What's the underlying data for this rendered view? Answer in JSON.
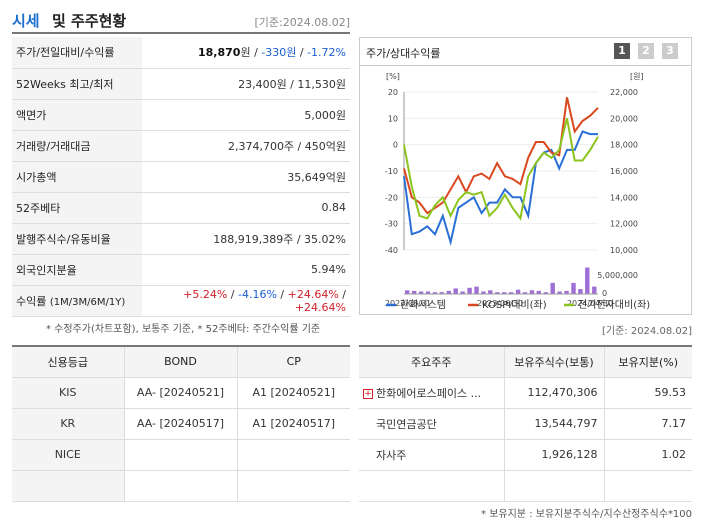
{
  "header": {
    "title_blue": "시세",
    "title_rest": "및 주주현황",
    "base_date": "[기준:2024.08.02]"
  },
  "info": {
    "price_label": "주가/전일대비/수익률",
    "price": "18,870",
    "price_unit": "원",
    "price_sep1": " / ",
    "change": "-330원",
    "price_sep2": " / ",
    "change_pct": "-1.72%",
    "week52_label": "52Weeks 최고/최저",
    "week52_value": "23,400원 / 11,530원",
    "par_label": "액면가",
    "par_value": "5,000원",
    "volume_label": "거래량/거래대금",
    "volume_value": "2,374,700주 / 450억원",
    "mcap_label": "시가총액",
    "mcap_value": "35,649억원",
    "beta_label": "52주베타",
    "beta_value": "0.84",
    "shares_label": "발행주식수/유동비율",
    "shares_value": "188,919,389주 / 35.02%",
    "foreign_label": "외국인지분율",
    "foreign_value": "5.94%",
    "return_label": "수익률",
    "return_period": "(1M/3M/6M/1Y)",
    "return_1m": "+5.24%",
    "return_3m": "-4.16%",
    "return_6m": "+24.64%",
    "return_1y": "+24.64%",
    "sep": " / "
  },
  "note1": "* 수정주가(차트포함), 보통주 기준, * 52주베타: 주간수익률 기준",
  "chart_panel": {
    "title": "주가/상대수익률",
    "tabs": [
      "1",
      "2",
      "3"
    ]
  },
  "chart_data": {
    "type": "line",
    "left_axis_unit": "[%]",
    "right_axis_unit": "[원]",
    "left_ticks": [
      "20",
      "10",
      "0",
      "-10",
      "-20",
      "-30",
      "-40"
    ],
    "right_ticks": [
      "22,000",
      "20,000",
      "18,000",
      "16,000",
      "14,000",
      "12,000",
      "10,000"
    ],
    "volume_tick": "5,000,000",
    "volume_tick_zero": "0",
    "x_labels": [
      "2022/08/31",
      "2023/06/30",
      "2024/04/30"
    ],
    "ylim_left": [
      -40,
      20
    ],
    "series": [
      {
        "name": "한화시스템",
        "color": "#2a6fd6",
        "values": [
          -12,
          -34,
          -33,
          -31,
          -34,
          -27,
          -37,
          -24,
          -22,
          -20,
          -26,
          -22,
          -22,
          -17,
          -20,
          -20,
          -27,
          -7,
          -3,
          -2,
          -9,
          -2,
          -2,
          5,
          4,
          4
        ]
      },
      {
        "name": "KOSPI대비(좌)",
        "color": "#d9481f",
        "values": [
          -9,
          -20,
          -22,
          -26,
          -24,
          -22,
          -17,
          -12,
          -18,
          -12,
          -11,
          -13,
          -7,
          -12,
          -13,
          -15,
          -5,
          1,
          1,
          -3,
          -4,
          18,
          5,
          9,
          11,
          14
        ]
      },
      {
        "name": "전기전자대비(좌)",
        "color": "#8cc420",
        "values": [
          0,
          -16,
          -27,
          -28,
          -23,
          -20,
          -27,
          -21,
          -18,
          -19,
          -18,
          -27,
          -24,
          -19,
          -24,
          -28,
          -12,
          -7,
          -3,
          -5,
          -2,
          10,
          -6,
          -6,
          -2,
          3
        ]
      }
    ],
    "volume": {
      "name": "거래량",
      "color": "#9f6fd6",
      "values": [
        0.6,
        0.5,
        0.4,
        0.4,
        0.3,
        0.3,
        0.5,
        0.9,
        0.4,
        1.0,
        1.2,
        0.4,
        0.6,
        0.3,
        0.3,
        0.3,
        0.7,
        0.3,
        0.6,
        0.5,
        0.3,
        1.8,
        0.4,
        0.5,
        1.8,
        0.8,
        4.3,
        1.2
      ]
    },
    "volume_max": 6.0
  },
  "base2": "[기준: 2024.08.02]",
  "credit": {
    "headers": [
      "신용등급",
      "BOND",
      "CP"
    ],
    "rows": [
      [
        "KIS",
        "AA-  [20240521]",
        "A1  [20240521]"
      ],
      [
        "KR",
        "AA-  [20240517]",
        "A1  [20240517]"
      ],
      [
        "NICE",
        "",
        ""
      ],
      [
        "",
        "",
        ""
      ]
    ]
  },
  "holders": {
    "headers": [
      "주요주주",
      "보유주식수(보통)",
      "보유지분(%)"
    ],
    "rows": [
      [
        "한화에어로스페이스 ...",
        "112,470,306",
        "59.53"
      ],
      [
        "국민연금공단",
        "13,544,797",
        "7.17"
      ],
      [
        "자사주",
        "1,926,128",
        "1.02"
      ],
      [
        "",
        "",
        ""
      ]
    ]
  },
  "note2": "* 보유지분 : 보유지분주식수/지수산정주식수*100"
}
